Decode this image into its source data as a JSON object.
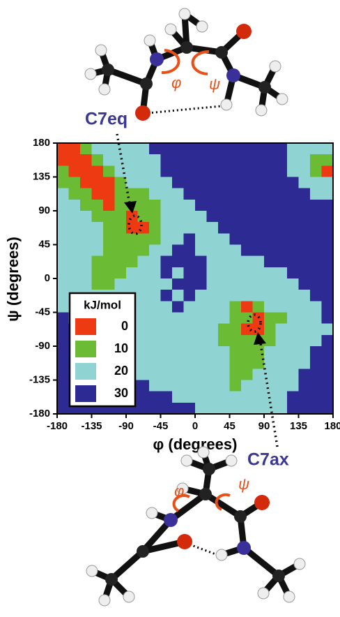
{
  "chart_data": {
    "type": "heatmap",
    "x_label": "φ (degrees)",
    "y_label": "ψ (degrees)",
    "x": [
      -172.5,
      -157.5,
      -142.5,
      -127.5,
      -112.5,
      -97.5,
      -82.5,
      -67.5,
      -52.5,
      -37.5,
      -22.5,
      -7.5,
      7.5,
      22.5,
      37.5,
      52.5,
      67.5,
      82.5,
      97.5,
      112.5,
      127.5,
      142.5,
      157.5,
      172.5
    ],
    "y": [
      172.5,
      157.5,
      142.5,
      127.5,
      112.5,
      97.5,
      82.5,
      67.5,
      52.5,
      37.5,
      22.5,
      7.5,
      -7.5,
      -22.5,
      -37.5,
      -52.5,
      -67.5,
      -82.5,
      -97.5,
      -112.5,
      -127.5,
      -142.5,
      -157.5,
      -172.5
    ],
    "z": [
      [
        0,
        0,
        10,
        20,
        20,
        20,
        20,
        20,
        30,
        30,
        30,
        30,
        30,
        30,
        30,
        30,
        30,
        30,
        30,
        30,
        20,
        20,
        20,
        20
      ],
      [
        0,
        0,
        0,
        10,
        20,
        20,
        20,
        20,
        20,
        30,
        30,
        30,
        30,
        30,
        30,
        30,
        30,
        30,
        30,
        30,
        20,
        20,
        10,
        10
      ],
      [
        10,
        0,
        0,
        0,
        10,
        20,
        20,
        20,
        20,
        30,
        30,
        30,
        30,
        30,
        30,
        30,
        30,
        30,
        30,
        30,
        20,
        20,
        10,
        0
      ],
      [
        10,
        10,
        0,
        0,
        0,
        10,
        20,
        20,
        20,
        20,
        30,
        30,
        30,
        30,
        30,
        30,
        30,
        30,
        30,
        30,
        30,
        20,
        20,
        20
      ],
      [
        20,
        10,
        10,
        0,
        0,
        10,
        10,
        10,
        20,
        20,
        20,
        30,
        30,
        30,
        30,
        30,
        30,
        30,
        30,
        30,
        30,
        30,
        20,
        20
      ],
      [
        20,
        20,
        10,
        10,
        0,
        10,
        10,
        10,
        10,
        20,
        20,
        20,
        30,
        30,
        30,
        30,
        30,
        30,
        30,
        30,
        30,
        30,
        30,
        30
      ],
      [
        20,
        20,
        20,
        10,
        10,
        10,
        0,
        10,
        10,
        20,
        20,
        20,
        20,
        30,
        30,
        30,
        30,
        30,
        30,
        30,
        30,
        30,
        30,
        30
      ],
      [
        20,
        20,
        20,
        20,
        10,
        10,
        0,
        0,
        10,
        20,
        20,
        20,
        20,
        20,
        30,
        30,
        30,
        30,
        30,
        30,
        30,
        30,
        30,
        30
      ],
      [
        20,
        20,
        20,
        20,
        10,
        10,
        10,
        10,
        10,
        20,
        20,
        30,
        20,
        20,
        20,
        30,
        30,
        30,
        30,
        30,
        30,
        30,
        30,
        30
      ],
      [
        20,
        20,
        20,
        20,
        10,
        10,
        10,
        10,
        20,
        20,
        30,
        30,
        20,
        20,
        20,
        20,
        30,
        30,
        30,
        30,
        30,
        30,
        30,
        30
      ],
      [
        20,
        20,
        20,
        10,
        10,
        10,
        10,
        20,
        20,
        30,
        30,
        30,
        30,
        20,
        20,
        20,
        20,
        20,
        30,
        30,
        30,
        30,
        30,
        30
      ],
      [
        20,
        20,
        20,
        10,
        10,
        10,
        20,
        20,
        20,
        30,
        20,
        30,
        30,
        20,
        20,
        20,
        20,
        20,
        20,
        20,
        30,
        30,
        30,
        30
      ],
      [
        20,
        20,
        20,
        10,
        10,
        20,
        20,
        20,
        20,
        20,
        30,
        30,
        30,
        20,
        20,
        20,
        20,
        20,
        20,
        20,
        20,
        30,
        30,
        30
      ],
      [
        20,
        20,
        20,
        20,
        20,
        20,
        20,
        20,
        20,
        30,
        20,
        30,
        20,
        20,
        20,
        20,
        20,
        20,
        20,
        20,
        20,
        20,
        30,
        30
      ],
      [
        20,
        20,
        20,
        20,
        20,
        20,
        20,
        20,
        20,
        20,
        30,
        20,
        20,
        20,
        20,
        10,
        0,
        10,
        20,
        20,
        20,
        20,
        20,
        30
      ],
      [
        30,
        20,
        20,
        20,
        20,
        20,
        20,
        20,
        20,
        20,
        20,
        20,
        20,
        20,
        20,
        10,
        10,
        0,
        10,
        10,
        20,
        20,
        20,
        30
      ],
      [
        30,
        30,
        20,
        20,
        20,
        20,
        20,
        20,
        20,
        20,
        20,
        20,
        20,
        20,
        10,
        10,
        0,
        0,
        10,
        20,
        20,
        20,
        20,
        20
      ],
      [
        30,
        30,
        30,
        20,
        20,
        20,
        20,
        20,
        20,
        20,
        20,
        20,
        20,
        20,
        10,
        10,
        10,
        10,
        10,
        20,
        20,
        20,
        20,
        30
      ],
      [
        30,
        30,
        30,
        30,
        20,
        20,
        20,
        20,
        20,
        20,
        20,
        20,
        20,
        20,
        20,
        10,
        10,
        10,
        20,
        20,
        20,
        20,
        30,
        30
      ],
      [
        30,
        30,
        30,
        30,
        30,
        20,
        20,
        20,
        20,
        20,
        20,
        20,
        20,
        20,
        20,
        10,
        10,
        10,
        20,
        20,
        20,
        20,
        30,
        30
      ],
      [
        30,
        30,
        30,
        30,
        30,
        30,
        20,
        20,
        20,
        20,
        20,
        20,
        20,
        20,
        20,
        10,
        10,
        20,
        20,
        20,
        20,
        30,
        30,
        30
      ],
      [
        30,
        30,
        30,
        30,
        30,
        30,
        30,
        30,
        20,
        20,
        20,
        20,
        20,
        20,
        20,
        10,
        20,
        20,
        20,
        20,
        20,
        30,
        30,
        30
      ],
      [
        30,
        30,
        30,
        30,
        30,
        30,
        30,
        30,
        30,
        30,
        20,
        20,
        20,
        20,
        20,
        20,
        20,
        20,
        20,
        20,
        30,
        30,
        30,
        30
      ],
      [
        30,
        30,
        30,
        30,
        30,
        30,
        30,
        30,
        30,
        30,
        30,
        30,
        20,
        20,
        20,
        20,
        20,
        20,
        20,
        20,
        30,
        30,
        30,
        30
      ]
    ],
    "xlim": [
      -180,
      180
    ],
    "ylim": [
      -180,
      180
    ],
    "xticks": [
      -180,
      -135,
      -90,
      -45,
      0,
      45,
      90,
      135,
      180
    ],
    "yticks": [
      -180,
      -135,
      -90,
      -45,
      0,
      45,
      90,
      135,
      180
    ],
    "legend_title": "kJ/mol",
    "levels": [
      0,
      10,
      20,
      30
    ],
    "colors": [
      "#ee3a12",
      "#6cbb34",
      "#8fd3d3",
      "#2d2a93"
    ],
    "annotations": [
      "C7eq",
      "C7ax"
    ],
    "molecule_labels": [
      "φ",
      "ψ",
      "φ",
      "ψ"
    ]
  }
}
